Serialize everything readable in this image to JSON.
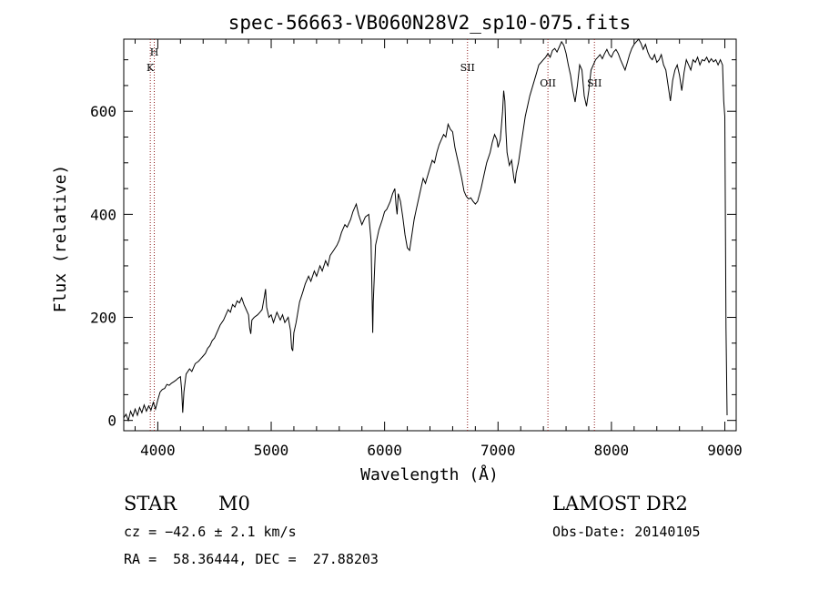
{
  "chart_data": {
    "type": "line",
    "title": "spec-56663-VB060N28V2_sp10-075.fits",
    "xlabel": "Wavelength (Å)",
    "ylabel": "Flux (relative)",
    "xlim": [
      3700,
      9100
    ],
    "ylim": [
      -20,
      740
    ],
    "x_ticks": [
      4000,
      5000,
      6000,
      7000,
      8000,
      9000
    ],
    "x_tick_labels": [
      "4000",
      "5000",
      "6000",
      "7000",
      "8000",
      "9000"
    ],
    "y_ticks": [
      0,
      200,
      400,
      600
    ],
    "y_tick_labels": [
      "0",
      "200",
      "400",
      "600"
    ],
    "grid": false,
    "line_color": "#000000",
    "marker_color": "#8b1a1a",
    "spectral_lines": [
      {
        "label": "H",
        "wavelength": 3969
      },
      {
        "label": "K",
        "wavelength": 3934
      },
      {
        "label": "SII",
        "wavelength": 6731
      },
      {
        "label": "OII",
        "wavelength": 7440
      },
      {
        "label": "SII",
        "wavelength": 7850
      }
    ],
    "series": [
      {
        "name": "Flux",
        "points": [
          [
            3700,
            5
          ],
          [
            3720,
            12
          ],
          [
            3740,
            0
          ],
          [
            3760,
            18
          ],
          [
            3780,
            8
          ],
          [
            3800,
            22
          ],
          [
            3820,
            10
          ],
          [
            3840,
            25
          ],
          [
            3860,
            15
          ],
          [
            3880,
            30
          ],
          [
            3900,
            18
          ],
          [
            3920,
            28
          ],
          [
            3940,
            20
          ],
          [
            3960,
            35
          ],
          [
            3980,
            22
          ],
          [
            4000,
            40
          ],
          [
            4020,
            55
          ],
          [
            4040,
            60
          ],
          [
            4060,
            62
          ],
          [
            4080,
            70
          ],
          [
            4100,
            68
          ],
          [
            4120,
            72
          ],
          [
            4140,
            75
          ],
          [
            4160,
            78
          ],
          [
            4180,
            82
          ],
          [
            4200,
            85
          ],
          [
            4210,
            60
          ],
          [
            4220,
            15
          ],
          [
            4230,
            55
          ],
          [
            4250,
            90
          ],
          [
            4280,
            100
          ],
          [
            4300,
            95
          ],
          [
            4330,
            110
          ],
          [
            4360,
            115
          ],
          [
            4380,
            120
          ],
          [
            4400,
            125
          ],
          [
            4420,
            130
          ],
          [
            4440,
            140
          ],
          [
            4460,
            145
          ],
          [
            4480,
            155
          ],
          [
            4500,
            160
          ],
          [
            4520,
            170
          ],
          [
            4550,
            185
          ],
          [
            4580,
            195
          ],
          [
            4600,
            205
          ],
          [
            4620,
            215
          ],
          [
            4640,
            210
          ],
          [
            4660,
            225
          ],
          [
            4680,
            220
          ],
          [
            4700,
            232
          ],
          [
            4720,
            228
          ],
          [
            4740,
            238
          ],
          [
            4760,
            225
          ],
          [
            4780,
            215
          ],
          [
            4800,
            205
          ],
          [
            4810,
            180
          ],
          [
            4820,
            168
          ],
          [
            4830,
            195
          ],
          [
            4850,
            200
          ],
          [
            4880,
            205
          ],
          [
            4900,
            210
          ],
          [
            4920,
            215
          ],
          [
            4940,
            240
          ],
          [
            4950,
            255
          ],
          [
            4960,
            220
          ],
          [
            4980,
            200
          ],
          [
            5000,
            205
          ],
          [
            5020,
            190
          ],
          [
            5050,
            210
          ],
          [
            5080,
            195
          ],
          [
            5100,
            205
          ],
          [
            5120,
            190
          ],
          [
            5150,
            200
          ],
          [
            5170,
            175
          ],
          [
            5180,
            140
          ],
          [
            5190,
            135
          ],
          [
            5200,
            170
          ],
          [
            5220,
            190
          ],
          [
            5250,
            230
          ],
          [
            5280,
            250
          ],
          [
            5300,
            265
          ],
          [
            5330,
            280
          ],
          [
            5350,
            270
          ],
          [
            5380,
            290
          ],
          [
            5400,
            280
          ],
          [
            5430,
            300
          ],
          [
            5450,
            290
          ],
          [
            5480,
            310
          ],
          [
            5500,
            300
          ],
          [
            5520,
            320
          ],
          [
            5550,
            330
          ],
          [
            5580,
            340
          ],
          [
            5600,
            350
          ],
          [
            5620,
            365
          ],
          [
            5650,
            380
          ],
          [
            5670,
            375
          ],
          [
            5700,
            390
          ],
          [
            5720,
            405
          ],
          [
            5750,
            420
          ],
          [
            5770,
            400
          ],
          [
            5800,
            380
          ],
          [
            5830,
            395
          ],
          [
            5860,
            400
          ],
          [
            5880,
            350
          ],
          [
            5890,
            240
          ],
          [
            5895,
            170
          ],
          [
            5900,
            230
          ],
          [
            5920,
            340
          ],
          [
            5950,
            370
          ],
          [
            5980,
            390
          ],
          [
            6000,
            405
          ],
          [
            6020,
            410
          ],
          [
            6050,
            425
          ],
          [
            6070,
            440
          ],
          [
            6090,
            450
          ],
          [
            6100,
            420
          ],
          [
            6110,
            400
          ],
          [
            6120,
            440
          ],
          [
            6140,
            425
          ],
          [
            6160,
            395
          ],
          [
            6180,
            360
          ],
          [
            6200,
            335
          ],
          [
            6220,
            330
          ],
          [
            6240,
            360
          ],
          [
            6260,
            390
          ],
          [
            6280,
            410
          ],
          [
            6300,
            430
          ],
          [
            6320,
            450
          ],
          [
            6340,
            470
          ],
          [
            6360,
            460
          ],
          [
            6380,
            475
          ],
          [
            6400,
            490
          ],
          [
            6420,
            505
          ],
          [
            6440,
            500
          ],
          [
            6460,
            520
          ],
          [
            6480,
            535
          ],
          [
            6500,
            545
          ],
          [
            6520,
            555
          ],
          [
            6540,
            550
          ],
          [
            6560,
            575
          ],
          [
            6580,
            565
          ],
          [
            6600,
            560
          ],
          [
            6620,
            530
          ],
          [
            6640,
            510
          ],
          [
            6660,
            490
          ],
          [
            6680,
            470
          ],
          [
            6700,
            445
          ],
          [
            6720,
            435
          ],
          [
            6740,
            430
          ],
          [
            6760,
            432
          ],
          [
            6780,
            425
          ],
          [
            6800,
            420
          ],
          [
            6820,
            425
          ],
          [
            6850,
            450
          ],
          [
            6880,
            480
          ],
          [
            6900,
            500
          ],
          [
            6930,
            520
          ],
          [
            6950,
            540
          ],
          [
            6970,
            555
          ],
          [
            6990,
            545
          ],
          [
            7000,
            530
          ],
          [
            7020,
            545
          ],
          [
            7040,
            600
          ],
          [
            7050,
            640
          ],
          [
            7060,
            620
          ],
          [
            7070,
            560
          ],
          [
            7080,
            520
          ],
          [
            7100,
            495
          ],
          [
            7120,
            505
          ],
          [
            7140,
            470
          ],
          [
            7150,
            460
          ],
          [
            7160,
            480
          ],
          [
            7180,
            500
          ],
          [
            7200,
            530
          ],
          [
            7220,
            560
          ],
          [
            7240,
            590
          ],
          [
            7260,
            610
          ],
          [
            7280,
            630
          ],
          [
            7300,
            645
          ],
          [
            7320,
            660
          ],
          [
            7340,
            675
          ],
          [
            7360,
            690
          ],
          [
            7380,
            695
          ],
          [
            7400,
            700
          ],
          [
            7420,
            705
          ],
          [
            7440,
            712
          ],
          [
            7460,
            705
          ],
          [
            7480,
            718
          ],
          [
            7500,
            722
          ],
          [
            7520,
            715
          ],
          [
            7540,
            725
          ],
          [
            7560,
            735
          ],
          [
            7580,
            728
          ],
          [
            7600,
            712
          ],
          [
            7620,
            690
          ],
          [
            7640,
            670
          ],
          [
            7660,
            640
          ],
          [
            7680,
            618
          ],
          [
            7700,
            650
          ],
          [
            7720,
            690
          ],
          [
            7740,
            680
          ],
          [
            7760,
            630
          ],
          [
            7780,
            610
          ],
          [
            7800,
            640
          ],
          [
            7820,
            680
          ],
          [
            7840,
            690
          ],
          [
            7860,
            700
          ],
          [
            7880,
            705
          ],
          [
            7900,
            710
          ],
          [
            7920,
            702
          ],
          [
            7940,
            712
          ],
          [
            7960,
            720
          ],
          [
            7980,
            710
          ],
          [
            8000,
            705
          ],
          [
            8020,
            715
          ],
          [
            8040,
            720
          ],
          [
            8060,
            712
          ],
          [
            8080,
            700
          ],
          [
            8100,
            690
          ],
          [
            8120,
            680
          ],
          [
            8140,
            695
          ],
          [
            8160,
            710
          ],
          [
            8180,
            722
          ],
          [
            8200,
            730
          ],
          [
            8220,
            735
          ],
          [
            8240,
            740
          ],
          [
            8260,
            732
          ],
          [
            8280,
            720
          ],
          [
            8300,
            730
          ],
          [
            8320,
            715
          ],
          [
            8340,
            705
          ],
          [
            8360,
            700
          ],
          [
            8380,
            710
          ],
          [
            8400,
            695
          ],
          [
            8420,
            700
          ],
          [
            8440,
            710
          ],
          [
            8460,
            690
          ],
          [
            8480,
            680
          ],
          [
            8500,
            650
          ],
          [
            8520,
            620
          ],
          [
            8540,
            660
          ],
          [
            8560,
            680
          ],
          [
            8580,
            690
          ],
          [
            8600,
            670
          ],
          [
            8620,
            640
          ],
          [
            8640,
            675
          ],
          [
            8660,
            700
          ],
          [
            8680,
            690
          ],
          [
            8700,
            680
          ],
          [
            8720,
            700
          ],
          [
            8740,
            695
          ],
          [
            8760,
            705
          ],
          [
            8780,
            690
          ],
          [
            8800,
            700
          ],
          [
            8820,
            698
          ],
          [
            8840,
            705
          ],
          [
            8860,
            695
          ],
          [
            8880,
            702
          ],
          [
            8900,
            696
          ],
          [
            8920,
            700
          ],
          [
            8940,
            690
          ],
          [
            8960,
            700
          ],
          [
            8980,
            690
          ],
          [
            8990,
            620
          ],
          [
            9000,
            590
          ],
          [
            9010,
            180
          ],
          [
            9020,
            10
          ]
        ]
      }
    ]
  },
  "footer": {
    "class_label": "STAR",
    "subclass": "M0",
    "redshift": "cz = −42.6 ± 2.1 km/s",
    "coords": "RA =  58.36444, DEC =  27.88203",
    "survey": "LAMOST DR2",
    "obs_date": "Obs-Date: 20140105"
  }
}
